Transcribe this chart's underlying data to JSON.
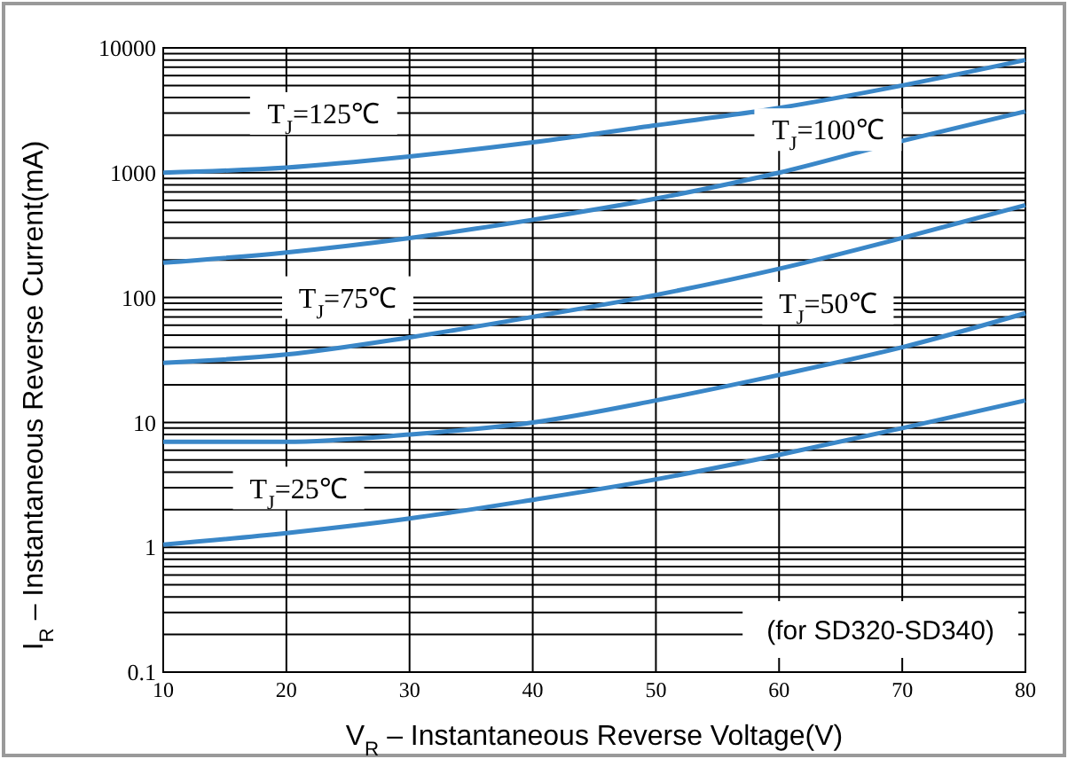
{
  "chart_data": {
    "type": "line",
    "xlabel": "V$_{R}$ – Instantaneous Reverse Voltage(V)",
    "ylabel": "I$_{R}$ – Instantaneous Reverse Current(mA)",
    "x": [
      10,
      20,
      30,
      40,
      50,
      60,
      70,
      80
    ],
    "series": [
      {
        "name": "T$_{J}$=125℃",
        "color": "#3a87c8",
        "values": [
          1000,
          1100,
          1350,
          1750,
          2400,
          3300,
          5000,
          8000
        ]
      },
      {
        "name": "T$_{J}$=100℃",
        "color": "#3a87c8",
        "values": [
          190,
          230,
          300,
          420,
          620,
          1000,
          1800,
          3100
        ]
      },
      {
        "name": "T$_{J}$=75℃",
        "color": "#3a87c8",
        "values": [
          30,
          35,
          48,
          70,
          105,
          170,
          300,
          550
        ]
      },
      {
        "name": "T$_{J}$=50℃",
        "color": "#3a87c8",
        "values": [
          7,
          7,
          8,
          10,
          15,
          24,
          40,
          75
        ]
      },
      {
        "name": "T$_{J}$=25℃",
        "color": "#3a87c8",
        "values": [
          1.05,
          1.3,
          1.7,
          2.4,
          3.5,
          5.5,
          9,
          15
        ]
      }
    ],
    "xlim": [
      10,
      80
    ],
    "xticks": [
      10,
      20,
      30,
      40,
      50,
      60,
      70,
      80
    ],
    "ylim": [
      0.1,
      10000
    ],
    "yticks": [
      0.1,
      1,
      10,
      100,
      1000,
      10000
    ],
    "log": "y",
    "grid": true,
    "marker": "none",
    "line_style": "solid",
    "annotations": [
      "(for SD320-SD340)"
    ]
  }
}
